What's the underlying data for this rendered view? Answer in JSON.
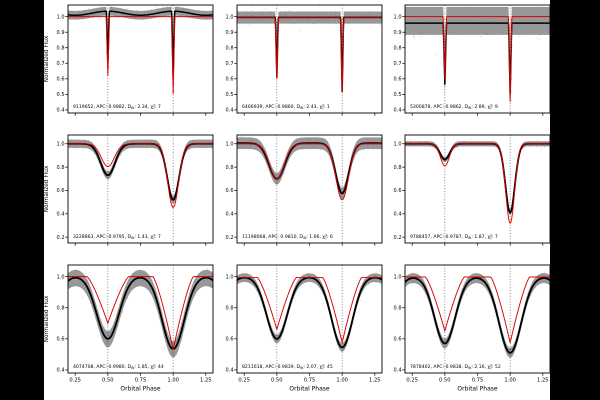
{
  "figure": {
    "background": "#000000",
    "paper": "#ffffff"
  },
  "chart_data": {
    "type": "line",
    "title": "",
    "xlabel": "Orbital Phase",
    "ylabel": "Normalized Flux",
    "xlim": [
      0.195,
      1.305
    ],
    "x_ticks": [
      "0.25",
      "0.50",
      "0.75",
      "1.00",
      "1.25"
    ],
    "x_tick_values": [
      0.25,
      0.5,
      0.75,
      1.0,
      1.25
    ],
    "phase_markers": [
      0.5,
      1.0
    ],
    "grid": false,
    "legend": "none",
    "colors": {
      "data_band": "#8f8f8f",
      "data_dots": "#757575",
      "median_curve": "#000000",
      "model_curve": "#dd0000",
      "phase_line": "#444444",
      "frame": "#000000"
    },
    "rows": [
      {
        "ylim": [
          0.38,
          1.075
        ],
        "ytick_labels": [
          "1.0",
          "0.9",
          "0.8",
          "0.7",
          "0.6",
          "0.5",
          "0.4"
        ],
        "ytick_values": [
          1.0,
          0.9,
          0.8,
          0.7,
          0.6,
          0.5,
          0.4
        ]
      },
      {
        "ylim": [
          0.15,
          1.075
        ],
        "ytick_labels": [
          "1.0",
          "0.8",
          "0.6",
          "0.4",
          "0.2"
        ],
        "ytick_values": [
          1.0,
          0.8,
          0.6,
          0.4,
          0.2
        ]
      },
      {
        "ylim": [
          0.38,
          1.075
        ],
        "ytick_labels": [
          "1.0",
          "0.8",
          "0.6",
          "0.4"
        ],
        "ytick_values": [
          1.0,
          0.8,
          0.6,
          0.4
        ]
      }
    ],
    "panels": [
      {
        "kic": "9119652",
        "apc": "0.9882",
        "dw": "2.34",
        "chi2r": "7",
        "black": {
          "base": 1.022,
          "wave": 0.013,
          "model": "tri",
          "sec": {
            "min": 0.7,
            "w": 0.011
          },
          "pri": {
            "min": 0.6,
            "w": 0.011
          }
        },
        "red": {
          "base": 1.0,
          "wave": 0,
          "model": "tri",
          "sec": {
            "min": 0.62,
            "w": 0.013
          },
          "pri": {
            "min": 0.505,
            "w": 0.013
          }
        },
        "band": {
          "up": 0.028,
          "dn": 0.028
        },
        "eclipse_scatter": true
      },
      {
        "kic": "6466939",
        "apc": "0.9860",
        "dw": "2.43",
        "chi2r": "1",
        "black": {
          "base": 0.995,
          "wave": 0,
          "model": "tri",
          "sec": {
            "min": 0.615,
            "w": 0.011
          },
          "pri": {
            "min": 0.52,
            "w": 0.011
          }
        },
        "red": {
          "base": 0.993,
          "wave": 0,
          "model": "tri",
          "sec": {
            "min": 0.6,
            "w": 0.013
          },
          "pri": {
            "min": 0.515,
            "w": 0.013
          }
        },
        "band": {
          "up": 0.038,
          "dn": 0.04
        },
        "eclipse_scatter": true
      },
      {
        "kic": "5300878",
        "apc": "0.9862",
        "dw": "2.89",
        "chi2r": "9",
        "black": {
          "base": 0.958,
          "wave": 0,
          "model": "tri",
          "sec": {
            "min": 0.565,
            "w": 0.012
          },
          "pri": {
            "min": 0.5,
            "w": 0.012
          }
        },
        "red": {
          "base": 1.0,
          "wave": 0,
          "model": "tri",
          "sec": {
            "min": 0.6,
            "w": 0.013
          },
          "pri": {
            "min": 0.455,
            "w": 0.013
          }
        },
        "band": {
          "up": 0.105,
          "dn": 0.075
        },
        "eclipse_scatter": true
      },
      {
        "kic": "3228863",
        "apc": "0.9795",
        "dw": "1.43",
        "chi2r": "7",
        "black": {
          "base": 1.0,
          "wave": 0,
          "model": "gauss",
          "sec": {
            "min": 0.73,
            "w": 0.055
          },
          "pri": {
            "min": 0.52,
            "w": 0.045
          }
        },
        "red": {
          "base": 1.0,
          "wave": 0,
          "model": "gauss",
          "sec": {
            "min": 0.805,
            "w": 0.05
          },
          "pri": {
            "min": 0.455,
            "w": 0.042
          }
        },
        "band": {
          "up": 0.035,
          "dn": 0.035
        },
        "eclipse_scatter": false
      },
      {
        "kic": "11198068",
        "apc": "0.9810",
        "dw": "1.66",
        "chi2r": "6",
        "black": {
          "base": 1.005,
          "wave": 0,
          "model": "gauss",
          "sec": {
            "min": 0.7,
            "w": 0.06
          },
          "pri": {
            "min": 0.575,
            "w": 0.05
          }
        },
        "red": {
          "base": 1.0,
          "wave": 0,
          "model": "gauss",
          "sec": {
            "min": 0.7,
            "w": 0.055
          },
          "pri": {
            "min": 0.52,
            "w": 0.048
          }
        },
        "band": {
          "up": 0.05,
          "dn": 0.05
        },
        "eclipse_scatter": false
      },
      {
        "kic": "9788457",
        "apc": "0.9787",
        "dw": "1.87",
        "chi2r": "7",
        "black": {
          "base": 1.0,
          "wave": 0,
          "model": "gauss",
          "sec": {
            "min": 0.865,
            "w": 0.037
          },
          "pri": {
            "min": 0.41,
            "w": 0.036
          }
        },
        "red": {
          "base": 1.0,
          "wave": 0,
          "model": "gauss",
          "sec": {
            "min": 0.81,
            "w": 0.034
          },
          "pri": {
            "min": 0.32,
            "w": 0.034
          }
        },
        "band": {
          "up": 0.022,
          "dn": 0.022
        },
        "eclipse_scatter": false
      },
      {
        "kic": "4074708",
        "apc": "0.9980",
        "dw": "1.85",
        "chi2r": "44",
        "black": {
          "base": 1.005,
          "wave": 0,
          "model": "gauss",
          "sec": {
            "min": 0.6,
            "w": 0.085
          },
          "pri": {
            "min": 0.535,
            "w": 0.085
          }
        },
        "red": {
          "base": 1.0,
          "wave": 0,
          "model": "tri",
          "q": 1.3,
          "sec": {
            "min": 0.7,
            "w": 0.16
          },
          "pri": {
            "min": 0.53,
            "w": 0.155
          }
        },
        "band": {
          "up": 0.05,
          "dn": 0.055
        },
        "eclipse_scatter": false
      },
      {
        "kic": "8211618",
        "apc": "0.9839",
        "dw": "2.07",
        "chi2r": "45",
        "black": {
          "base": 1.0,
          "wave": 0,
          "model": "gauss",
          "sec": {
            "min": 0.6,
            "w": 0.08
          },
          "pri": {
            "min": 0.545,
            "w": 0.08
          }
        },
        "red": {
          "base": 0.995,
          "wave": 0,
          "model": "tri",
          "q": 1.3,
          "sec": {
            "min": 0.66,
            "w": 0.15
          },
          "pri": {
            "min": 0.575,
            "w": 0.15
          }
        },
        "band": {
          "up": 0.028,
          "dn": 0.028
        },
        "eclipse_scatter": false
      },
      {
        "kic": "7878402",
        "apc": "0.9838",
        "dw": "2.16",
        "chi2r": "52",
        "black": {
          "base": 1.0,
          "wave": 0,
          "model": "gauss",
          "sec": {
            "min": 0.57,
            "w": 0.08
          },
          "pri": {
            "min": 0.51,
            "w": 0.085
          }
        },
        "red": {
          "base": 0.998,
          "wave": 0,
          "model": "tri",
          "q": 1.3,
          "sec": {
            "min": 0.65,
            "w": 0.15
          },
          "pri": {
            "min": 0.575,
            "w": 0.15
          }
        },
        "band": {
          "up": 0.032,
          "dn": 0.032
        },
        "eclipse_scatter": false
      }
    ],
    "annotation_format": "KIC, APC: value, D_W: value, chi2_r: value"
  }
}
